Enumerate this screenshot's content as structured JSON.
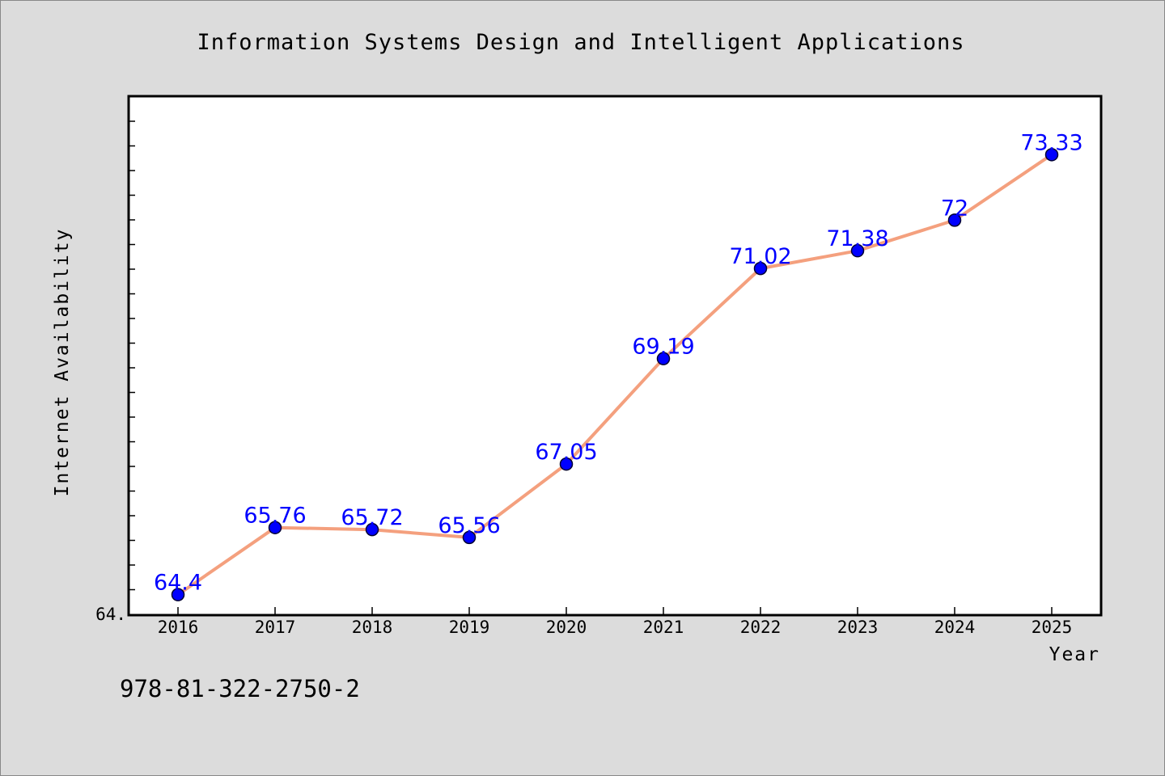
{
  "chart_data": {
    "type": "line",
    "title": "Information Systems Design and Intelligent Applications",
    "xlabel": "Year",
    "ylabel": "Internet Availability",
    "categories": [
      "2016",
      "2017",
      "2018",
      "2019",
      "2020",
      "2021",
      "2022",
      "2023",
      "2024",
      "2025"
    ],
    "series": [
      {
        "values": [
          64.4,
          65.76,
          65.72,
          65.56,
          67.05,
          69.19,
          71.02,
          71.38,
          72,
          73.33
        ],
        "labels": [
          "64.4",
          "65.76",
          "65.72",
          "65.56",
          "67.05",
          "69.19",
          "71.02",
          "71.38",
          "72",
          "73.33"
        ]
      }
    ],
    "ylim": [
      64,
      74.5
    ],
    "y_tick_label": "64.",
    "line_color": "#f4a07e",
    "marker_color": "#0000ff",
    "label_color": "#0000ff",
    "grid": false,
    "legend": "none"
  },
  "footer": {
    "isbn": "978-81-322-2750-2"
  },
  "colors": {
    "background": "#dcdcdc",
    "plot_background": "#ffffff"
  }
}
